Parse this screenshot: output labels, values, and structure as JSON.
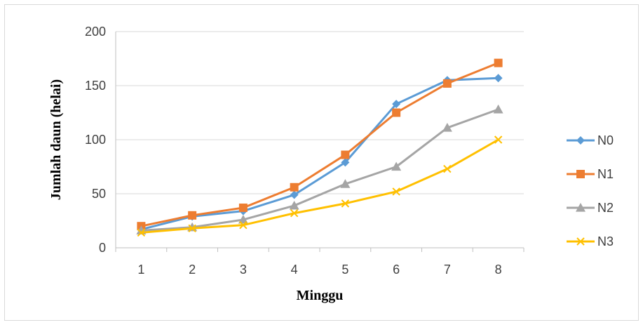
{
  "chart_data": {
    "type": "line",
    "title": "",
    "xlabel": "Minggu",
    "ylabel": "Jumlah daun (helai)",
    "categories": [
      "1",
      "2",
      "3",
      "4",
      "5",
      "6",
      "7",
      "8"
    ],
    "ylim": [
      0,
      200
    ],
    "yticks": [
      "0",
      "50",
      "100",
      "150",
      "200"
    ],
    "grid": true,
    "legend_position": "right",
    "series": [
      {
        "name": "N0",
        "color": "#5B9BD5",
        "marker": "diamond",
        "values": [
          17,
          29,
          34,
          49,
          79,
          133,
          155,
          157
        ]
      },
      {
        "name": "N1",
        "color": "#ED7D31",
        "marker": "square",
        "values": [
          20,
          30,
          37,
          56,
          86,
          125,
          152,
          171
        ]
      },
      {
        "name": "N2",
        "color": "#A5A5A5",
        "marker": "triangle",
        "values": [
          16,
          19,
          26,
          39,
          59,
          75,
          111,
          128
        ]
      },
      {
        "name": "N3",
        "color": "#FFC000",
        "marker": "x",
        "values": [
          14,
          18,
          21,
          32,
          41,
          52,
          73,
          100
        ]
      }
    ]
  }
}
